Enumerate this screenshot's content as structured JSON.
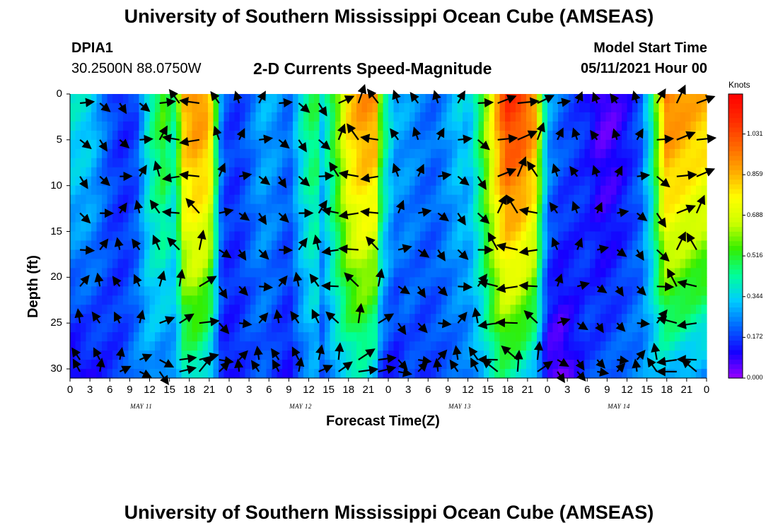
{
  "page": {
    "top_title": "University of Southern Mississippi Ocean Cube (AMSEAS)",
    "bottom_title": "University of Southern Mississippi Ocean Cube (AMSEAS)",
    "station_id": "DPIA1",
    "station_coords": "30.2500N  88.0750W",
    "plot_title": "2-D Currents Speed-Magnitude",
    "model_start_label": "Model Start Time",
    "model_start_value": "05/11/2021 Hour 00",
    "colorbar_unit": "Knots"
  },
  "colors": {
    "palette": [
      "#9900ff",
      "#1500ff",
      "#0066ff",
      "#00ccff",
      "#00ff99",
      "#33ee00",
      "#ccff00",
      "#ffff00",
      "#ffaa00",
      "#ff6600",
      "#ff2a00",
      "#ff0000"
    ]
  },
  "chart_data": {
    "type": "heatmap",
    "title": "2-D Currents Speed-Magnitude",
    "xlabel": "Forecast Time(Z)",
    "ylabel": "Depth (ft)",
    "x_tick_labels": [
      "0",
      "3",
      "6",
      "9",
      "12",
      "15",
      "18",
      "21",
      "0",
      "3",
      "6",
      "9",
      "12",
      "15",
      "18",
      "21",
      "0",
      "3",
      "6",
      "9",
      "12",
      "15",
      "18",
      "21",
      "0",
      "3",
      "6",
      "9",
      "12",
      "15",
      "18",
      "21",
      "0"
    ],
    "x_range_hours": [
      0,
      96
    ],
    "day_labels": [
      {
        "text": "MAY 11",
        "hour": 11
      },
      {
        "text": "MAY 12",
        "hour": 35
      },
      {
        "text": "MAY 13",
        "hour": 59
      },
      {
        "text": "MAY 14",
        "hour": 83
      }
    ],
    "y_tick_labels": [
      "0",
      "5",
      "10",
      "15",
      "20",
      "25",
      "30"
    ],
    "y_ticks": [
      0,
      5,
      10,
      15,
      20,
      25,
      30
    ],
    "ylim": [
      0,
      31
    ],
    "y_inverted": true,
    "colorbar": {
      "label": "Knots",
      "range": [
        0,
        1.2
      ],
      "ticks": [
        0.0,
        0.172,
        0.344,
        0.516,
        0.688,
        0.859,
        1.031
      ],
      "tick_labels": [
        "0.000",
        "0.172",
        "0.344",
        "0.516",
        "0.688",
        "0.859",
        "1.031"
      ]
    },
    "arrow_depths_ft": [
      0,
      4,
      8,
      12,
      16,
      20,
      24,
      28,
      30
    ],
    "speed_profile": {
      "hours": [
        0,
        3,
        6,
        8,
        10,
        12,
        14,
        16,
        17,
        19,
        21,
        22,
        23,
        25,
        27,
        29,
        31,
        33,
        35,
        37,
        38,
        40,
        42,
        44,
        46,
        47,
        49,
        51,
        53,
        55,
        57,
        59,
        60,
        62,
        64,
        65,
        66,
        68,
        70,
        71,
        72,
        74,
        76,
        78,
        80,
        82,
        84,
        86,
        88,
        89,
        90,
        92,
        94,
        96
      ],
      "surface": [
        0.38,
        0.35,
        0.2,
        0.14,
        0.18,
        0.42,
        0.55,
        0.42,
        0.85,
        0.93,
        0.88,
        0.52,
        0.2,
        0.16,
        0.22,
        0.3,
        0.28,
        0.22,
        0.4,
        0.52,
        0.35,
        0.55,
        0.82,
        0.92,
        0.9,
        0.52,
        0.3,
        0.28,
        0.24,
        0.22,
        0.28,
        0.35,
        0.3,
        0.52,
        0.82,
        0.98,
        1.08,
        1.05,
        0.92,
        0.58,
        0.3,
        0.22,
        0.18,
        0.14,
        0.05,
        0.06,
        0.12,
        0.2,
        0.45,
        0.75,
        0.95,
        0.92,
        0.88,
        0.85
      ],
      "bottom": [
        0.08,
        0.12,
        0.15,
        0.18,
        0.25,
        0.28,
        0.22,
        0.25,
        0.38,
        0.4,
        0.32,
        0.22,
        0.12,
        0.14,
        0.18,
        0.2,
        0.15,
        0.12,
        0.22,
        0.28,
        0.18,
        0.3,
        0.35,
        0.38,
        0.3,
        0.15,
        0.12,
        0.18,
        0.16,
        0.18,
        0.2,
        0.22,
        0.24,
        0.3,
        0.4,
        0.45,
        0.42,
        0.38,
        0.3,
        0.2,
        0.05,
        0.03,
        0.1,
        0.18,
        0.2,
        0.22,
        0.24,
        0.25,
        0.3,
        0.32,
        0.3,
        0.28,
        0.26,
        0.24
      ]
    }
  }
}
